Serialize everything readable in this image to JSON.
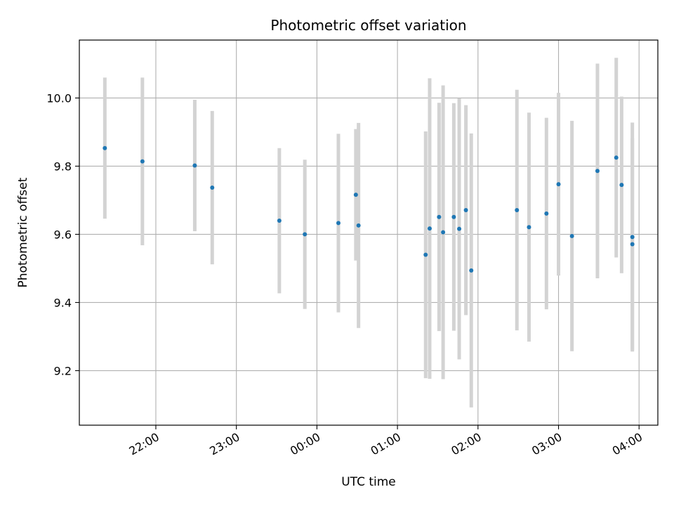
{
  "chart_data": {
    "type": "scatter",
    "title": "Photometric offset variation",
    "xlabel": "UTC time",
    "ylabel": "Photometric offset",
    "grid": true,
    "xlim": [
      "21:03",
      "04:14"
    ],
    "ylim": [
      9.04,
      10.17
    ],
    "x_ticks": [
      "22:00",
      "23:00",
      "00:00",
      "01:00",
      "02:00",
      "03:00",
      "04:00"
    ],
    "y_ticks": [
      "9.2",
      "9.4",
      "9.6",
      "9.8",
      "10.0"
    ],
    "colors": {
      "points": "#1f77b4",
      "errorbars": "#d3d3d3",
      "grid": "#b0b0b0"
    },
    "points": [
      {
        "x": "21:22",
        "y": 9.853,
        "yerr": 0.207
      },
      {
        "x": "21:50",
        "y": 9.814,
        "yerr": 0.246
      },
      {
        "x": "22:29",
        "y": 9.802,
        "yerr": 0.193
      },
      {
        "x": "22:42",
        "y": 9.737,
        "yerr": 0.225
      },
      {
        "x": "23:32",
        "y": 9.64,
        "yerr": 0.213
      },
      {
        "x": "23:51",
        "y": 9.6,
        "yerr": 0.219
      },
      {
        "x": "00:16",
        "y": 9.633,
        "yerr": 0.262
      },
      {
        "x": "00:29",
        "y": 9.716,
        "yerr": 0.193
      },
      {
        "x": "00:31",
        "y": 9.626,
        "yerr": 0.301
      },
      {
        "x": "01:21",
        "y": 9.54,
        "yerr": 0.362
      },
      {
        "x": "01:24",
        "y": 9.617,
        "yerr": 0.441
      },
      {
        "x": "01:31",
        "y": 9.651,
        "yerr": 0.335
      },
      {
        "x": "01:34",
        "y": 9.606,
        "yerr": 0.431
      },
      {
        "x": "01:42",
        "y": 9.651,
        "yerr": 0.334
      },
      {
        "x": "01:46",
        "y": 9.616,
        "yerr": 0.383
      },
      {
        "x": "01:51",
        "y": 9.671,
        "yerr": 0.308
      },
      {
        "x": "01:55",
        "y": 9.494,
        "yerr": 0.402
      },
      {
        "x": "02:29",
        "y": 9.671,
        "yerr": 0.353
      },
      {
        "x": "02:38",
        "y": 9.621,
        "yerr": 0.336
      },
      {
        "x": "02:51",
        "y": 9.661,
        "yerr": 0.281
      },
      {
        "x": "03:00",
        "y": 9.747,
        "yerr": 0.268
      },
      {
        "x": "03:10",
        "y": 9.595,
        "yerr": 0.338
      },
      {
        "x": "03:29",
        "y": 9.786,
        "yerr": 0.315
      },
      {
        "x": "03:43",
        "y": 9.825,
        "yerr": 0.293
      },
      {
        "x": "03:47",
        "y": 9.745,
        "yerr": 0.259
      },
      {
        "x": "03:55",
        "y": 9.592,
        "yerr": 0.336
      },
      {
        "x": "03:55",
        "y": 9.571,
        "yerr": 0.311
      }
    ]
  }
}
